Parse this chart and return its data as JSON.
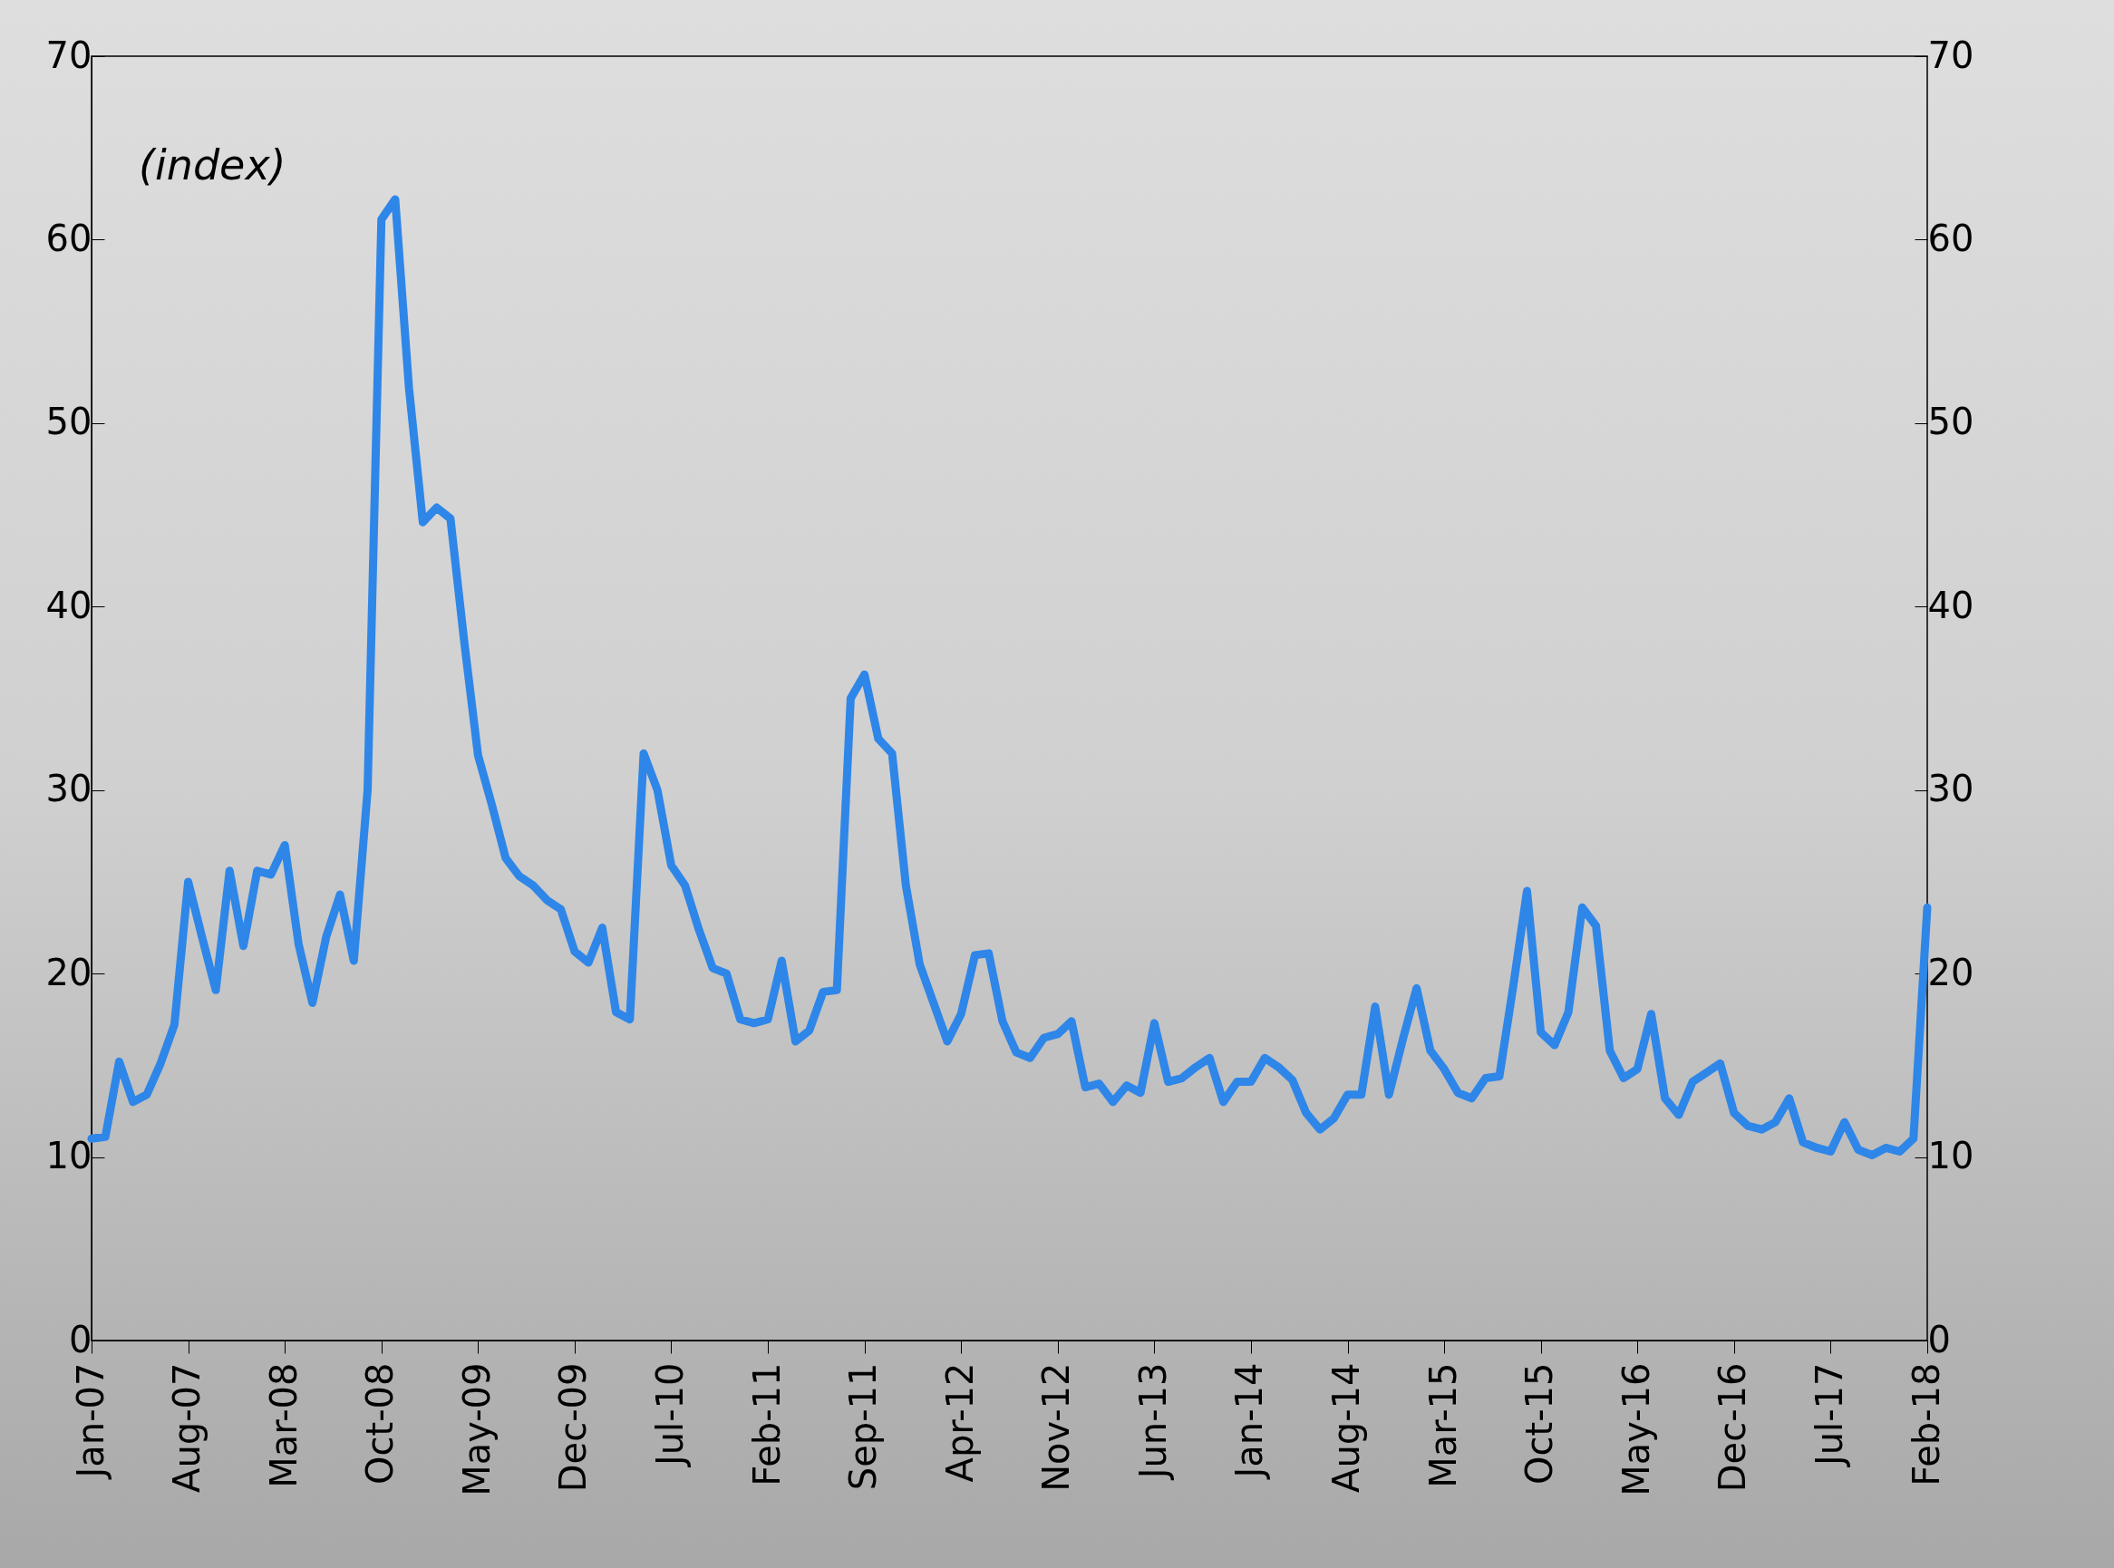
{
  "chart_data": {
    "type": "line",
    "subtitle": "(index)",
    "categories": [
      "Jan-07",
      null,
      null,
      null,
      null,
      null,
      null,
      "Aug-07",
      null,
      null,
      null,
      null,
      null,
      null,
      "Mar-08",
      null,
      null,
      null,
      null,
      null,
      null,
      "Oct-08",
      null,
      null,
      null,
      null,
      null,
      null,
      "May-09",
      null,
      null,
      null,
      null,
      null,
      null,
      "Dec-09",
      null,
      null,
      null,
      null,
      null,
      null,
      "Jul-10",
      null,
      null,
      null,
      null,
      null,
      null,
      "Feb-11",
      null,
      null,
      null,
      null,
      null,
      null,
      "Sep-11",
      null,
      null,
      null,
      null,
      null,
      null,
      "Apr-12",
      null,
      null,
      null,
      null,
      null,
      null,
      "Nov-12",
      null,
      null,
      null,
      null,
      null,
      null,
      "Jun-13",
      null,
      null,
      null,
      null,
      null,
      null,
      "Jan-14",
      null,
      null,
      null,
      null,
      null,
      null,
      "Aug-14",
      null,
      null,
      null,
      null,
      null,
      null,
      "Mar-15",
      null,
      null,
      null,
      null,
      null,
      null,
      "Oct-15",
      null,
      null,
      null,
      null,
      null,
      null,
      "May-16",
      null,
      null,
      null,
      null,
      null,
      null,
      "Dec-16",
      null,
      null,
      null,
      null,
      null,
      null,
      "Jul-17",
      null,
      null,
      null,
      null,
      null,
      null,
      "Feb-18"
    ],
    "series": [
      {
        "color": "#2e86e8",
        "values": [
          11.0,
          11.1,
          15.2,
          13.0,
          13.4,
          15.1,
          17.2,
          25.0,
          22.0,
          19.1,
          25.6,
          21.5,
          25.6,
          25.4,
          27.0,
          21.6,
          18.4,
          22.0,
          24.3,
          20.7,
          30.0,
          61.1,
          62.2,
          51.9,
          44.6,
          45.4,
          44.8,
          38.1,
          31.9,
          29.2,
          26.3,
          25.3,
          24.8,
          24.0,
          23.5,
          21.2,
          20.6,
          22.5,
          17.9,
          17.5,
          32.0,
          30.0,
          25.9,
          24.8,
          22.4,
          20.3,
          20.0,
          17.5,
          17.3,
          17.5,
          20.7,
          16.3,
          16.9,
          19.0,
          19.1,
          35.0,
          36.3,
          32.8,
          32.0,
          24.8,
          20.5,
          18.4,
          16.3,
          17.8,
          21.0,
          21.1,
          17.4,
          15.7,
          15.4,
          16.5,
          16.7,
          17.4,
          13.8,
          14.0,
          13.0,
          13.9,
          13.5,
          17.3,
          14.1,
          14.3,
          14.9,
          15.4,
          13.0,
          14.1,
          14.1,
          15.4,
          14.9,
          14.2,
          12.4,
          11.5,
          12.1,
          13.4,
          13.4,
          18.2,
          13.4,
          16.4,
          19.2,
          15.8,
          14.8,
          13.5,
          13.2,
          14.3,
          14.4,
          19.3,
          24.5,
          16.8,
          16.1,
          17.9,
          23.6,
          22.6,
          15.8,
          14.3,
          14.8,
          17.8,
          13.2,
          12.3,
          14.1,
          14.6,
          15.1,
          12.4,
          11.7,
          11.5,
          11.9,
          13.2,
          10.8,
          10.5,
          10.3,
          11.9,
          10.4,
          10.1,
          10.5,
          10.3,
          11.0,
          23.6
        ]
      }
    ],
    "ylim": [
      0,
      70
    ],
    "yticks": [
      0,
      10,
      20,
      30,
      40,
      50,
      60,
      70
    ],
    "y2lim": [
      0,
      70
    ],
    "y2ticks": [
      0,
      10,
      20,
      30,
      40,
      50,
      60,
      70
    ],
    "grid": false
  }
}
